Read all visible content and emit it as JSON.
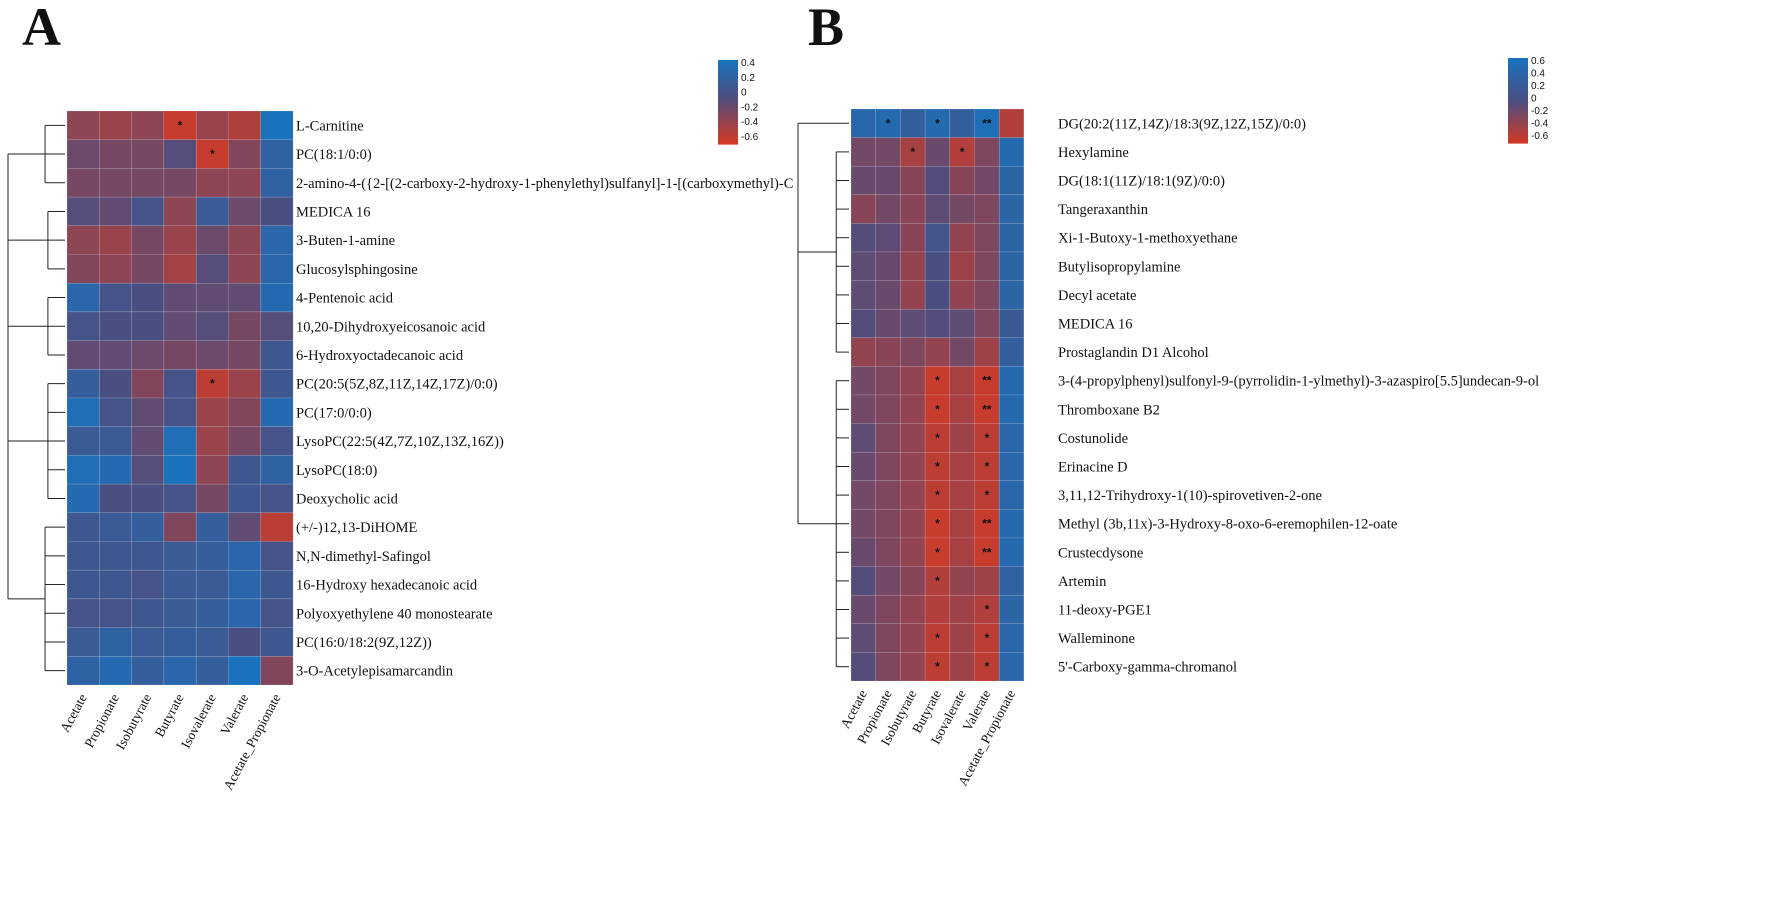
{
  "chart_data": [
    {
      "panel": "A",
      "type": "heatmap",
      "columns": [
        "Acetate",
        "Propionate",
        "Isobutyrate",
        "Butyrate",
        "Isovalerate",
        "Valerate",
        "Acetate_Propionate"
      ],
      "rows": [
        "L-Carnitine",
        "PC(18:1/0:0)",
        "2-amino-4-({2-[(2-carboxy-2-hydroxy-1-phenylethyl)sulfanyl]-1-[(carboxymethyl)-C",
        "MEDICA 16",
        "3-Buten-1-amine",
        "Glucosylsphingosine",
        "4-Pentenoic acid",
        "10,20-Dihydroxyeicosanoic acid",
        "6-Hydroxyoctadecanoic acid",
        "PC(20:5(5Z,8Z,11Z,14Z,17Z)/0:0)",
        "PC(17:0/0:0)",
        "LysoPC(22:5(4Z,7Z,10Z,13Z,16Z))",
        "LysoPC(18:0)",
        "Deoxycholic acid",
        "(+/-)12,13-DiHOME",
        "N,N-dimethyl-Safingol",
        "16-Hydroxy hexadecanoic acid",
        "Polyoxyethylene 40 monostearate",
        "PC(16:0/18:2(9Z,12Z))",
        "3-O-Acetylepisamarcandin"
      ],
      "values": [
        [
          -0.3,
          -0.35,
          -0.3,
          -0.55,
          -0.35,
          -0.45,
          0.45
        ],
        [
          -0.15,
          -0.2,
          -0.2,
          -0.05,
          -0.55,
          -0.25,
          0.25
        ],
        [
          -0.2,
          -0.2,
          -0.2,
          -0.2,
          -0.3,
          -0.3,
          0.25
        ],
        [
          -0.05,
          -0.1,
          0.05,
          -0.3,
          0.15,
          -0.15,
          0.0
        ],
        [
          -0.3,
          -0.35,
          -0.2,
          -0.35,
          -0.15,
          -0.3,
          0.3
        ],
        [
          -0.25,
          -0.3,
          -0.2,
          -0.4,
          -0.05,
          -0.3,
          0.3
        ],
        [
          0.3,
          0.05,
          0.0,
          -0.1,
          -0.1,
          -0.1,
          0.35
        ],
        [
          0.05,
          0.0,
          0.0,
          -0.1,
          -0.05,
          -0.2,
          -0.05
        ],
        [
          -0.1,
          -0.1,
          -0.15,
          -0.2,
          -0.15,
          -0.2,
          0.1
        ],
        [
          0.2,
          0.0,
          -0.25,
          0.05,
          -0.5,
          -0.35,
          0.1
        ],
        [
          0.4,
          0.05,
          -0.1,
          0.05,
          -0.35,
          -0.25,
          0.35
        ],
        [
          0.15,
          0.15,
          -0.1,
          0.4,
          -0.35,
          -0.2,
          0.05
        ],
        [
          0.4,
          0.35,
          -0.05,
          0.5,
          -0.3,
          0.1,
          0.25
        ],
        [
          0.35,
          0.0,
          0.0,
          0.05,
          -0.2,
          0.1,
          0.05
        ],
        [
          0.1,
          0.15,
          0.2,
          -0.25,
          0.2,
          -0.1,
          -0.5
        ],
        [
          0.1,
          0.1,
          0.1,
          0.15,
          0.2,
          0.3,
          0.05
        ],
        [
          0.1,
          0.1,
          0.05,
          0.15,
          0.15,
          0.3,
          0.1
        ],
        [
          0.05,
          0.05,
          0.1,
          0.15,
          0.2,
          0.3,
          0.05
        ],
        [
          0.15,
          0.25,
          0.15,
          0.2,
          0.15,
          0.0,
          0.1
        ],
        [
          0.25,
          0.35,
          0.2,
          0.3,
          0.2,
          0.45,
          -0.25
        ]
      ],
      "significance": [
        [
          "",
          "",
          "",
          "*",
          "",
          "",
          ""
        ],
        [
          "",
          "",
          "",
          "",
          "*",
          "",
          ""
        ],
        [
          "",
          "",
          "",
          "",
          "",
          "",
          ""
        ],
        [
          "",
          "",
          "",
          "",
          "",
          "",
          ""
        ],
        [
          "",
          "",
          "",
          "",
          "",
          "",
          ""
        ],
        [
          "",
          "",
          "",
          "",
          "",
          "",
          ""
        ],
        [
          "",
          "",
          "",
          "",
          "",
          "",
          ""
        ],
        [
          "",
          "",
          "",
          "",
          "",
          "",
          ""
        ],
        [
          "",
          "",
          "",
          "",
          "",
          "",
          ""
        ],
        [
          "",
          "",
          "",
          "",
          "*",
          "",
          ""
        ],
        [
          "",
          "",
          "",
          "",
          "",
          "",
          ""
        ],
        [
          "",
          "",
          "",
          "",
          "",
          "",
          ""
        ],
        [
          "",
          "",
          "",
          "",
          "",
          "",
          ""
        ],
        [
          "",
          "",
          "",
          "",
          "",
          "",
          ""
        ],
        [
          "",
          "",
          "",
          "",
          "",
          "",
          ""
        ],
        [
          "",
          "",
          "",
          "",
          "",
          "",
          ""
        ],
        [
          "",
          "",
          "",
          "",
          "",
          "",
          ""
        ],
        [
          "",
          "",
          "",
          "",
          "",
          "",
          ""
        ],
        [
          "",
          "",
          "",
          "",
          "",
          "",
          ""
        ],
        [
          "",
          "",
          "",
          "",
          "",
          "",
          ""
        ]
      ],
      "legend": {
        "ticks": [
          "0.4",
          "0.2",
          "0",
          "-0.2",
          "-0.4",
          "-0.6"
        ],
        "min": -0.6,
        "max": 0.45
      },
      "dendrogram_side": "left"
    },
    {
      "panel": "B",
      "type": "heatmap",
      "columns": [
        "Acetate",
        "Propionate",
        "Isobutyrate",
        "Butyrate",
        "Isovalerate",
        "Valerate",
        "Acetate_Propionate"
      ],
      "rows": [
        "DG(20:2(11Z,14Z)/18:3(9Z,12Z,15Z)/0:0)",
        "Hexylamine",
        "DG(18:1(11Z)/18:1(9Z)/0:0)",
        "Tangeraxanthin",
        "Xi-1-Butoxy-1-methoxyethane",
        "Butylisopropylamine",
        "Decyl acetate",
        "MEDICA 16",
        "Prostaglandin D1 Alcohol",
        "3-(4-propylphenyl)sulfonyl-9-(pyrrolidin-1-ylmethyl)-3-azaspiro[5.5]undecan-9-ol",
        "Thromboxane B2",
        "Costunolide",
        "Erinacine D",
        "3,11,12-Trihydroxy-1(10)-spirovetiven-2-one",
        "Methyl (3b,11x)-3-Hydroxy-8-oxo-6-eremophilen-12-oate",
        "Crustecdysone",
        "Artemin",
        "11-deoxy-PGE1",
        "Walleminone",
        "5'-Carboxy-gamma-chromanol"
      ],
      "values": [
        [
          0.45,
          0.5,
          0.3,
          0.5,
          0.3,
          0.6,
          -0.5
        ],
        [
          -0.2,
          -0.2,
          -0.45,
          -0.15,
          -0.5,
          -0.25,
          0.5
        ],
        [
          -0.15,
          -0.15,
          -0.3,
          -0.05,
          -0.3,
          -0.2,
          0.4
        ],
        [
          -0.3,
          -0.2,
          -0.3,
          -0.1,
          -0.2,
          -0.25,
          0.4
        ],
        [
          -0.05,
          -0.1,
          -0.3,
          0.1,
          -0.35,
          -0.25,
          0.4
        ],
        [
          -0.1,
          -0.15,
          -0.35,
          0.0,
          -0.4,
          -0.25,
          0.4
        ],
        [
          -0.1,
          -0.15,
          -0.35,
          0.0,
          -0.35,
          -0.25,
          0.4
        ],
        [
          -0.05,
          -0.15,
          -0.1,
          -0.05,
          -0.1,
          -0.25,
          0.2
        ],
        [
          -0.35,
          -0.3,
          -0.25,
          -0.35,
          -0.2,
          -0.4,
          0.3
        ],
        [
          -0.2,
          -0.25,
          -0.35,
          -0.6,
          -0.45,
          -0.6,
          0.5
        ],
        [
          -0.2,
          -0.25,
          -0.35,
          -0.6,
          -0.45,
          -0.6,
          0.5
        ],
        [
          -0.1,
          -0.25,
          -0.35,
          -0.55,
          -0.4,
          -0.55,
          0.45
        ],
        [
          -0.15,
          -0.25,
          -0.35,
          -0.55,
          -0.45,
          -0.55,
          0.45
        ],
        [
          -0.2,
          -0.25,
          -0.35,
          -0.55,
          -0.45,
          -0.55,
          0.45
        ],
        [
          -0.2,
          -0.25,
          -0.35,
          -0.6,
          -0.45,
          -0.6,
          0.5
        ],
        [
          -0.15,
          -0.25,
          -0.35,
          -0.6,
          -0.45,
          -0.6,
          0.5
        ],
        [
          -0.05,
          -0.2,
          -0.3,
          -0.5,
          -0.35,
          -0.4,
          0.35
        ],
        [
          -0.15,
          -0.25,
          -0.35,
          -0.5,
          -0.4,
          -0.5,
          0.4
        ],
        [
          -0.1,
          -0.25,
          -0.35,
          -0.55,
          -0.4,
          -0.55,
          0.45
        ],
        [
          -0.05,
          -0.25,
          -0.35,
          -0.55,
          -0.4,
          -0.55,
          0.45
        ]
      ],
      "significance": [
        [
          "",
          "*",
          "",
          "*",
          "",
          "**",
          ""
        ],
        [
          "",
          "",
          "*",
          "",
          "*",
          "",
          ""
        ],
        [
          "",
          "",
          "",
          "",
          "",
          "",
          ""
        ],
        [
          "",
          "",
          "",
          "",
          "",
          "",
          ""
        ],
        [
          "",
          "",
          "",
          "",
          "",
          "",
          ""
        ],
        [
          "",
          "",
          "",
          "",
          "",
          "",
          ""
        ],
        [
          "",
          "",
          "",
          "",
          "",
          "",
          ""
        ],
        [
          "",
          "",
          "",
          "",
          "",
          "",
          ""
        ],
        [
          "",
          "",
          "",
          "",
          "",
          "",
          ""
        ],
        [
          "",
          "",
          "",
          "*",
          "",
          "**",
          ""
        ],
        [
          "",
          "",
          "",
          "*",
          "",
          "**",
          ""
        ],
        [
          "",
          "",
          "",
          "*",
          "",
          "*",
          ""
        ],
        [
          "",
          "",
          "",
          "*",
          "",
          "*",
          ""
        ],
        [
          "",
          "",
          "",
          "*",
          "",
          "*",
          ""
        ],
        [
          "",
          "",
          "",
          "*",
          "",
          "**",
          ""
        ],
        [
          "",
          "",
          "",
          "*",
          "",
          "**",
          ""
        ],
        [
          "",
          "",
          "",
          "*",
          "",
          "",
          ""
        ],
        [
          "",
          "",
          "",
          "",
          "",
          "*",
          ""
        ],
        [
          "",
          "",
          "",
          "*",
          "",
          "*",
          ""
        ],
        [
          "",
          "",
          "",
          "*",
          "",
          "*",
          ""
        ]
      ],
      "legend": {
        "ticks": [
          "0.6",
          "0.4",
          "0.2",
          "0",
          "-0.2",
          "-0.4",
          "-0.6"
        ],
        "min": -0.65,
        "max": 0.65
      },
      "dendrogram_side": "left"
    }
  ],
  "colors": {
    "high": "#1a72bd",
    "mid": "#4a4f82",
    "low": "#d13a26"
  }
}
